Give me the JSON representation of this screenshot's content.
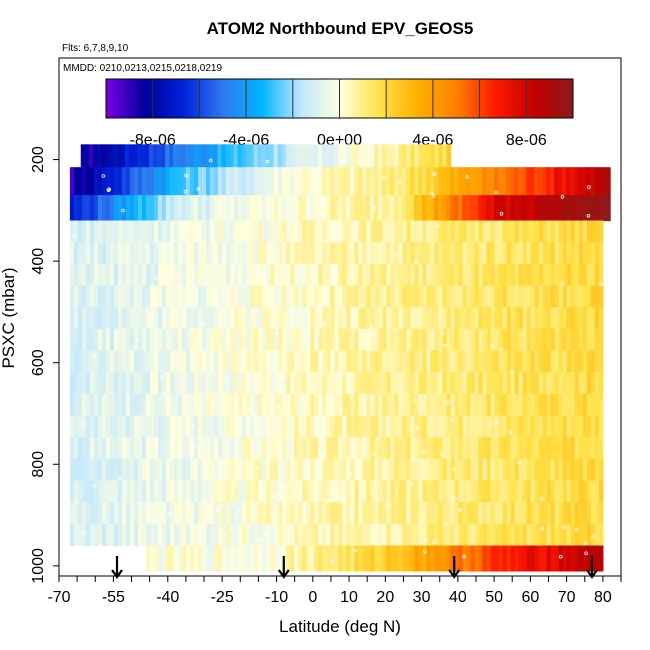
{
  "chart_data": {
    "type": "heatmap",
    "title": "ATOM2 Northbound EPV_GEOS5",
    "annotations": {
      "flights": "Flts: 6,7,8,9,10",
      "dates": "MMDD: 0210,0213,0215,0218,0219"
    },
    "xlabel": "Latitude (deg N)",
    "ylabel": "PSXC (mbar)",
    "xlim": [
      -70,
      85
    ],
    "ylim": [
      1020,
      0
    ],
    "x_ticks": [
      -70,
      -55,
      -40,
      -25,
      -10,
      0,
      10,
      20,
      30,
      40,
      50,
      60,
      70,
      80
    ],
    "x_tick_labels": [
      "-70",
      "-55",
      "-40",
      "-25",
      "-10",
      "0",
      "10",
      "20",
      "30",
      "40",
      "50",
      "60",
      "70",
      "80"
    ],
    "y_ticks": [
      200,
      400,
      600,
      800,
      1000
    ],
    "y_tick_labels": [
      "200",
      "400",
      "600",
      "800",
      "1000"
    ],
    "colorbar": {
      "min": -1e-05,
      "max": 1e-05,
      "ticks": [
        -8e-06,
        -4e-06,
        0,
        4e-06,
        8e-06
      ],
      "tick_labels": [
        "-8e-06",
        "-4e-06",
        "0e+00",
        "4e-06",
        "8e-06"
      ],
      "colors": [
        "#7a00e6",
        "#00009c",
        "#0022d8",
        "#2f78f0",
        "#00b4ff",
        "#bfe6ff",
        "#ffffe0",
        "#ffe34d",
        "#ffb000",
        "#ff8000",
        "#ff1a00",
        "#c40000",
        "#8b1a1a"
      ]
    },
    "flight_arrows_lat": [
      -54,
      -8,
      39,
      77
    ],
    "curtain_regions": [
      {
        "lat": [
          -64,
          38
        ],
        "p": [
          170,
          215
        ],
        "value_gradient": [
          -9e-06,
          -5e-06,
          -2e-06,
          0,
          2e-06
        ]
      },
      {
        "lat": [
          -67,
          82
        ],
        "p": [
          215,
          270
        ],
        "value_gradient": [
          -9e-06,
          -3e-06,
          0,
          1e-06,
          5e-06,
          9e-06
        ]
      },
      {
        "lat": [
          -67,
          82
        ],
        "p": [
          270,
          320
        ],
        "value_gradient": [
          -7e-06,
          -1e-06,
          0,
          1e-06,
          8e-06,
          1e-05
        ]
      },
      {
        "lat": [
          -67,
          80
        ],
        "p": [
          320,
          960
        ],
        "value_gradient": [
          -1e-06,
          0,
          1e-06,
          2e-06
        ]
      },
      {
        "lat": [
          -46,
          80
        ],
        "p": [
          960,
          1010
        ],
        "value_gradient": [
          0,
          0,
          2e-06,
          6e-06,
          9e-06
        ]
      }
    ]
  }
}
